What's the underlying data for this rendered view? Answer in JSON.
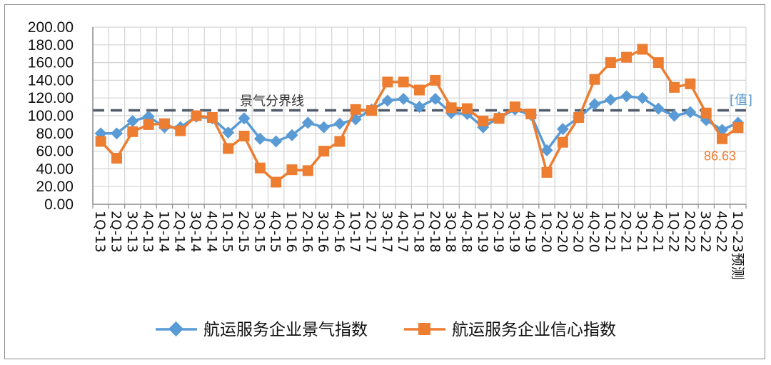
{
  "chart_data": {
    "type": "line",
    "title": "",
    "xlabel": "",
    "ylabel": "",
    "ylim": [
      0,
      200
    ],
    "yticks": [
      "0.00",
      "20.00",
      "40.00",
      "60.00",
      "80.00",
      "100.00",
      "120.00",
      "140.00",
      "160.00",
      "180.00",
      "200.00"
    ],
    "grid": true,
    "legend_position": "bottom",
    "categories": [
      "1Q-13",
      "2Q-13",
      "3Q-13",
      "4Q-13",
      "1Q-14",
      "2Q-14",
      "3Q-14",
      "4Q-14",
      "1Q-15",
      "2Q-15",
      "3Q-15",
      "4Q-15",
      "1Q-16",
      "2Q-16",
      "3Q-16",
      "4Q-16",
      "1Q-17",
      "2Q-17",
      "3Q-17",
      "4Q-17",
      "1Q-18",
      "2Q-18",
      "3Q-18",
      "4Q-18",
      "1Q-19",
      "2Q-19",
      "3Q-19",
      "4Q-19",
      "1Q-20",
      "2Q-20",
      "3Q-20",
      "4Q-20",
      "1Q-21",
      "2Q-21",
      "3Q-21",
      "4Q-21",
      "1Q-22",
      "2Q-22",
      "3Q-22",
      "4Q-22",
      "1Q-23预测"
    ],
    "series": [
      {
        "name": "航运服务企业景气指数",
        "color": "#5a9bd5",
        "marker": "diamond",
        "values": [
          80,
          80,
          94,
          99,
          87,
          87,
          99,
          97,
          81,
          97,
          74,
          71,
          78,
          92,
          87,
          91,
          96,
          107,
          117,
          119,
          110,
          119,
          103,
          102,
          87,
          98,
          107,
          101,
          61,
          85,
          98,
          113,
          118,
          122,
          120,
          108,
          100,
          104,
          95,
          84,
          92
        ]
      },
      {
        "name": "航运服务企业信心指数",
        "color": "#ed7d31",
        "marker": "square",
        "values": [
          71,
          52,
          82,
          90,
          91,
          83,
          100,
          98,
          63,
          77,
          41,
          25,
          39,
          38,
          60,
          71,
          107,
          106,
          138,
          138,
          129,
          140,
          109,
          108,
          94,
          97,
          110,
          102,
          36,
          70,
          98,
          141,
          160,
          166,
          175,
          160,
          132,
          136,
          103,
          74,
          86.63
        ]
      }
    ],
    "reference_line": {
      "value": 106,
      "label": "景气分界线",
      "color": "#4f5b6b"
    },
    "annotations": [
      {
        "text": "[值]",
        "series": 0,
        "color": "#5a9bd5"
      },
      {
        "text": "86.63",
        "series": 1,
        "color": "#ed7d31"
      }
    ]
  }
}
